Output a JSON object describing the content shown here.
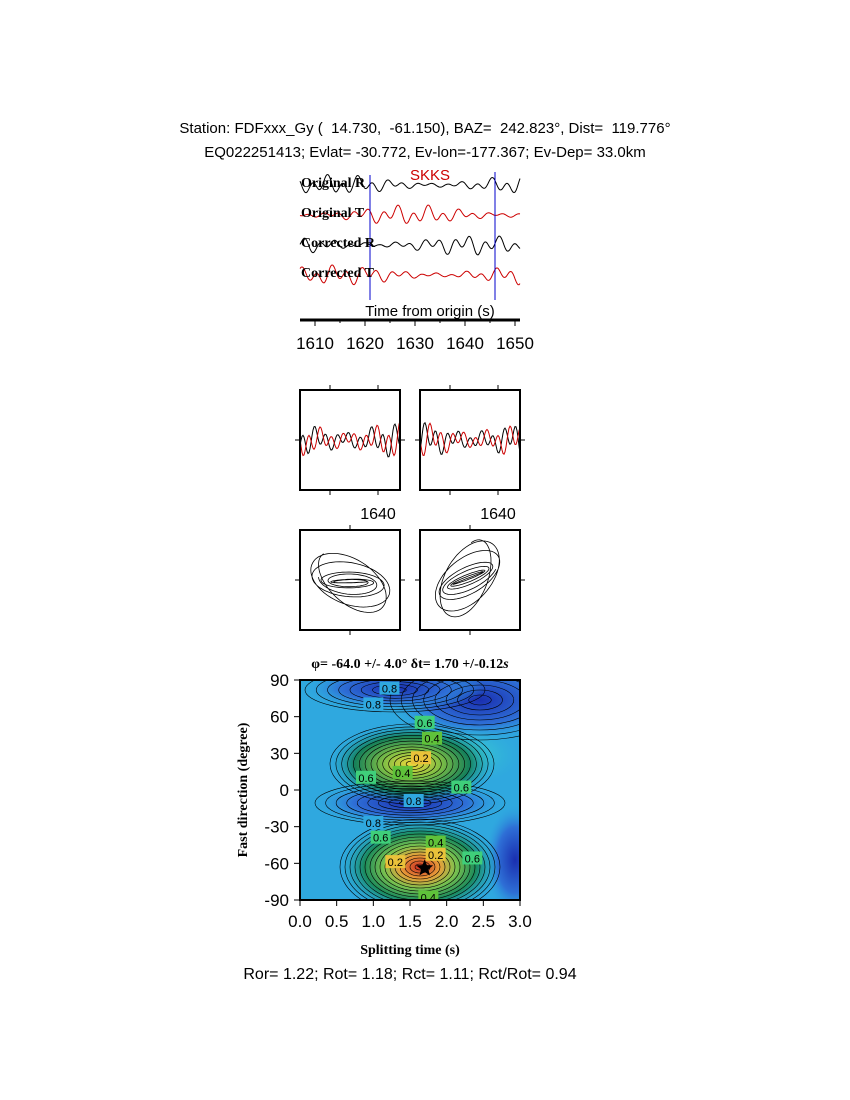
{
  "header": {
    "station_line": "Station: FDFxxx_Gy (  14.730,  -61.150), BAZ=  242.823°, Dist=  119.776°",
    "event_line": "EQ022251413; Evlat= -30.772, Ev-lon=-177.367; Ev-Dep= 33.0km"
  },
  "colors": {
    "radial": "#000000",
    "transverse": "#cc0000",
    "marker": "#0000cc",
    "phase": "#cc0000"
  },
  "chart_data": [
    {
      "type": "line",
      "panel": "seismograms",
      "series": [
        {
          "name": "Original R",
          "color": "#000000"
        },
        {
          "name": "Original T",
          "color": "#cc0000"
        },
        {
          "name": "Corrected R",
          "color": "#000000"
        },
        {
          "name": "Corrected T",
          "color": "#cc0000"
        }
      ],
      "phase_label": "SKKS",
      "xlabel": "Time from origin (s)",
      "xlim": [
        1607,
        1651
      ],
      "xticks": [
        1610,
        1620,
        1630,
        1640,
        1650
      ],
      "window_markers": [
        1621,
        1646
      ]
    },
    {
      "type": "line",
      "panel": "waveform-comparison",
      "subplots": [
        {
          "xticks": [
            1640
          ]
        },
        {
          "xticks": [
            1640
          ]
        }
      ]
    },
    {
      "type": "line",
      "panel": "particle-motion",
      "subplots": [
        {},
        {}
      ]
    },
    {
      "type": "heatmap",
      "panel": "splitting-grid",
      "title_phi": "φ= -64.0 +/- 4.0° δt= 1.70 +/-0.12",
      "title_unit": "s",
      "xlabel": "Splitting time (s)",
      "ylabel": "Fast direction (degree)",
      "xlim": [
        0,
        3
      ],
      "ylim": [
        -90,
        90
      ],
      "xticks": [
        "0.0",
        "0.5",
        "1.0",
        "1.5",
        "2.0",
        "2.5",
        "3.0"
      ],
      "yticks": [
        "-90",
        "-60",
        "-30",
        "0",
        "30",
        "60",
        "90"
      ],
      "best": {
        "dt": 1.7,
        "phi": -64
      },
      "contour_labels": [
        {
          "text": "0.8",
          "dt": 1.22,
          "phi": 83
        },
        {
          "text": "0.8",
          "dt": 1.0,
          "phi": 70
        },
        {
          "text": "0.6",
          "dt": 1.7,
          "phi": 55
        },
        {
          "text": "0.4",
          "dt": 1.8,
          "phi": 42
        },
        {
          "text": "0.2",
          "dt": 1.65,
          "phi": 26
        },
        {
          "text": "0.4",
          "dt": 1.4,
          "phi": 14
        },
        {
          "text": "0.6",
          "dt": 0.9,
          "phi": 10
        },
        {
          "text": "0.6",
          "dt": 2.2,
          "phi": 2
        },
        {
          "text": "0.8",
          "dt": 1.55,
          "phi": -9
        },
        {
          "text": "0.8",
          "dt": 1.0,
          "phi": -27
        },
        {
          "text": "0.6",
          "dt": 1.1,
          "phi": -39
        },
        {
          "text": "0.4",
          "dt": 1.85,
          "phi": -43
        },
        {
          "text": "0.2",
          "dt": 1.85,
          "phi": -53
        },
        {
          "text": "0.2",
          "dt": 1.3,
          "phi": -59
        },
        {
          "text": "0.6",
          "dt": 2.35,
          "phi": -56
        },
        {
          "text": "0.4",
          "dt": 1.75,
          "phi": -88
        }
      ]
    }
  ],
  "footer": {
    "ratios": "Ror= 1.22; Rot= 1.18; Rct= 1.11; Rct/Rot= 0.94"
  }
}
